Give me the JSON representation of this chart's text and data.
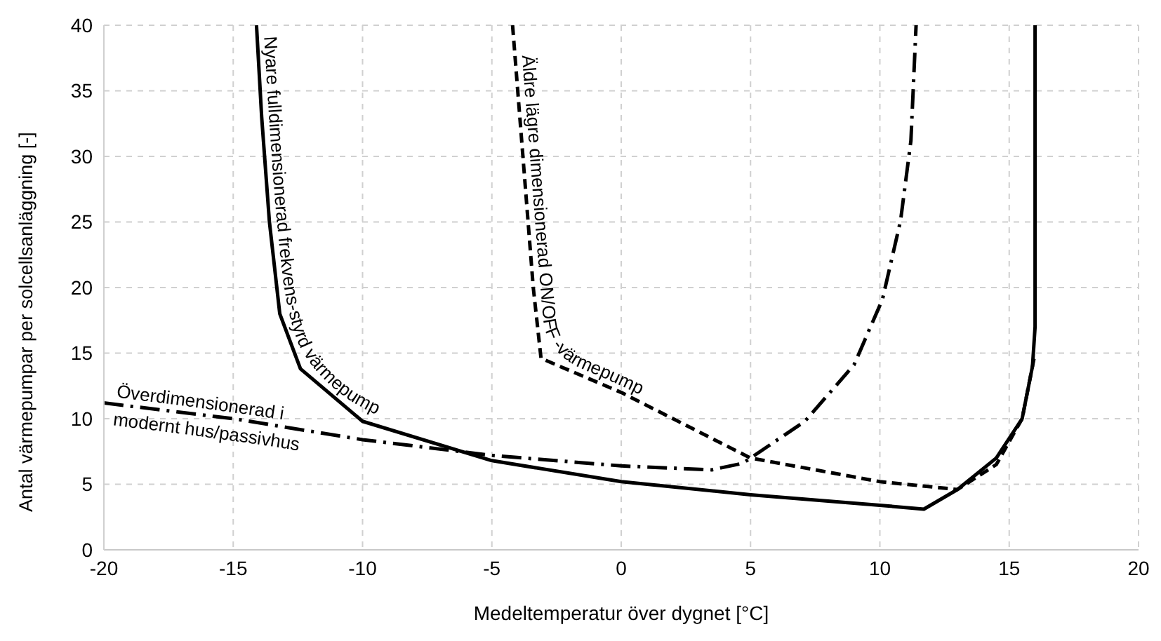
{
  "chart_data": {
    "type": "line",
    "xlabel": "Medeltemperatur över dygnet [°C]",
    "ylabel": "Antal värmepumpar per solcellsanläggning [-]",
    "xlim": [
      -20,
      20
    ],
    "xticks": [
      -20,
      -15,
      -10,
      -5,
      0,
      5,
      10,
      15,
      20
    ],
    "ylim": [
      0,
      40
    ],
    "yticks": [
      0,
      5,
      10,
      15,
      20,
      25,
      30,
      35,
      40
    ],
    "grid": true,
    "legend": false,
    "series": [
      {
        "name": "Nyare fulldimensionerad frekvens-styrd värmepump",
        "color": "#000000",
        "line_style": "solid",
        "x": [
          -14.1,
          -13.9,
          -13.6,
          -13.2,
          -12.4,
          -10,
          -5,
          0,
          5,
          10,
          11.7,
          13,
          14.5,
          15.5,
          15.9,
          16,
          16
        ],
        "values": [
          40,
          33,
          25,
          18,
          13.8,
          9.8,
          6.8,
          5.2,
          4.2,
          3.4,
          3.1,
          4.6,
          7,
          10,
          14,
          17,
          40
        ]
      },
      {
        "name": "Äldre lägre dimensionerad ON/OFF -värmepump",
        "color": "#000000",
        "line_style": "dashed",
        "x": [
          -4.2,
          -3.8,
          -3.4,
          -3.1,
          0,
          5,
          10,
          13,
          14.5,
          15.5,
          16
        ],
        "values": [
          40,
          30,
          20,
          14.6,
          12,
          7,
          5.2,
          4.6,
          6.5,
          10,
          15
        ]
      },
      {
        "name": "Överdimensionerad i\nmodernt hus/passivhus",
        "color": "#000000",
        "line_style": "dashdot",
        "x": [
          -20,
          -15,
          -10,
          -5,
          0,
          3.5,
          4.7,
          7.1,
          9,
          10.1,
          10.8,
          11.2,
          11.4
        ],
        "values": [
          11.2,
          10,
          8.4,
          7.2,
          6.4,
          6.1,
          6.6,
          9.8,
          14.1,
          19.1,
          25.1,
          31.2,
          40
        ]
      }
    ]
  }
}
